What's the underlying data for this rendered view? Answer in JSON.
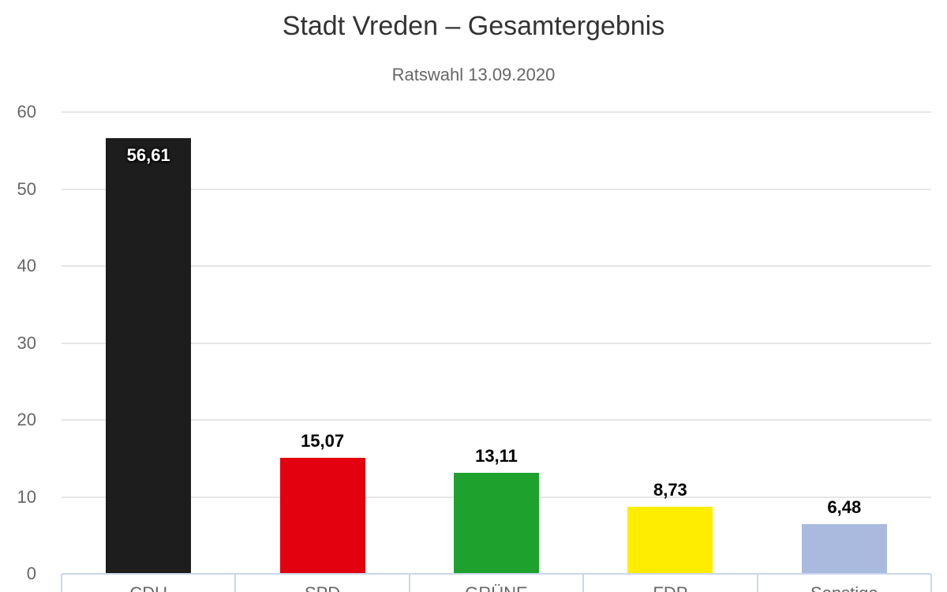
{
  "chart_data": {
    "type": "bar",
    "title": "Stadt Vreden – Gesamtergebnis",
    "subtitle": "Ratswahl 13.09.2020",
    "categories": [
      "CDU",
      "SPD",
      "GRÜNE",
      "FDP",
      "Sonstige"
    ],
    "values": [
      56.61,
      15.07,
      13.11,
      8.73,
      6.48
    ],
    "value_labels": [
      "56,61",
      "15,07",
      "13,11",
      "8,73",
      "6,48"
    ],
    "bar_colors": [
      "#1d1d1d",
      "#e3000f",
      "#1fa12d",
      "#ffed00",
      "#a9bade"
    ],
    "label_inside": [
      true,
      false,
      false,
      false,
      false
    ],
    "xlabel": "",
    "ylabel": "",
    "ylim": [
      0,
      60
    ],
    "yticks": [
      0,
      10,
      20,
      30,
      40,
      50,
      60
    ],
    "grid": true,
    "legend_position": "none",
    "colors": {
      "title": "#333333",
      "subtitle": "#666666",
      "grid": "#e6e6e6",
      "axis_line": "#ccd6eb",
      "tick_label": "#666666",
      "data_label": "#000000",
      "data_label_inside": "#ffffff"
    }
  }
}
